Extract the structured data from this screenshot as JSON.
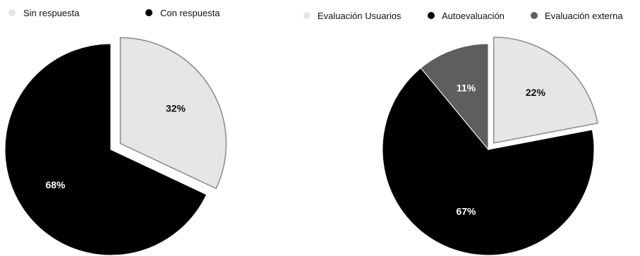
{
  "chart_data": [
    {
      "type": "pie",
      "title": "",
      "categories": [
        "Sin respuesta",
        "Con respuesta"
      ],
      "values": [
        32,
        68
      ],
      "value_labels": [
        "32%",
        "68%"
      ],
      "colors": [
        "#e6e6e6",
        "#000000"
      ],
      "label_colors": [
        "#111111",
        "#ffffff"
      ],
      "exploded": [
        true,
        false
      ],
      "legend": {
        "position": "top",
        "entries": [
          "Sin respuesta",
          "Con respuesta"
        ]
      }
    },
    {
      "type": "pie",
      "title": "",
      "categories": [
        "Evaluación Usuarios",
        "Autoevaluación",
        "Evaluación externa"
      ],
      "values": [
        22,
        67,
        11
      ],
      "value_labels": [
        "22%",
        "67%",
        "11%"
      ],
      "colors": [
        "#e6e6e6",
        "#000000",
        "#5e5e5e"
      ],
      "label_colors": [
        "#111111",
        "#ffffff",
        "#ffffff"
      ],
      "exploded": [
        true,
        false,
        false
      ],
      "legend": {
        "position": "top",
        "entries": [
          "Evaluación Usuarios",
          "Autoevaluación",
          "Evaluación externa"
        ]
      }
    }
  ]
}
